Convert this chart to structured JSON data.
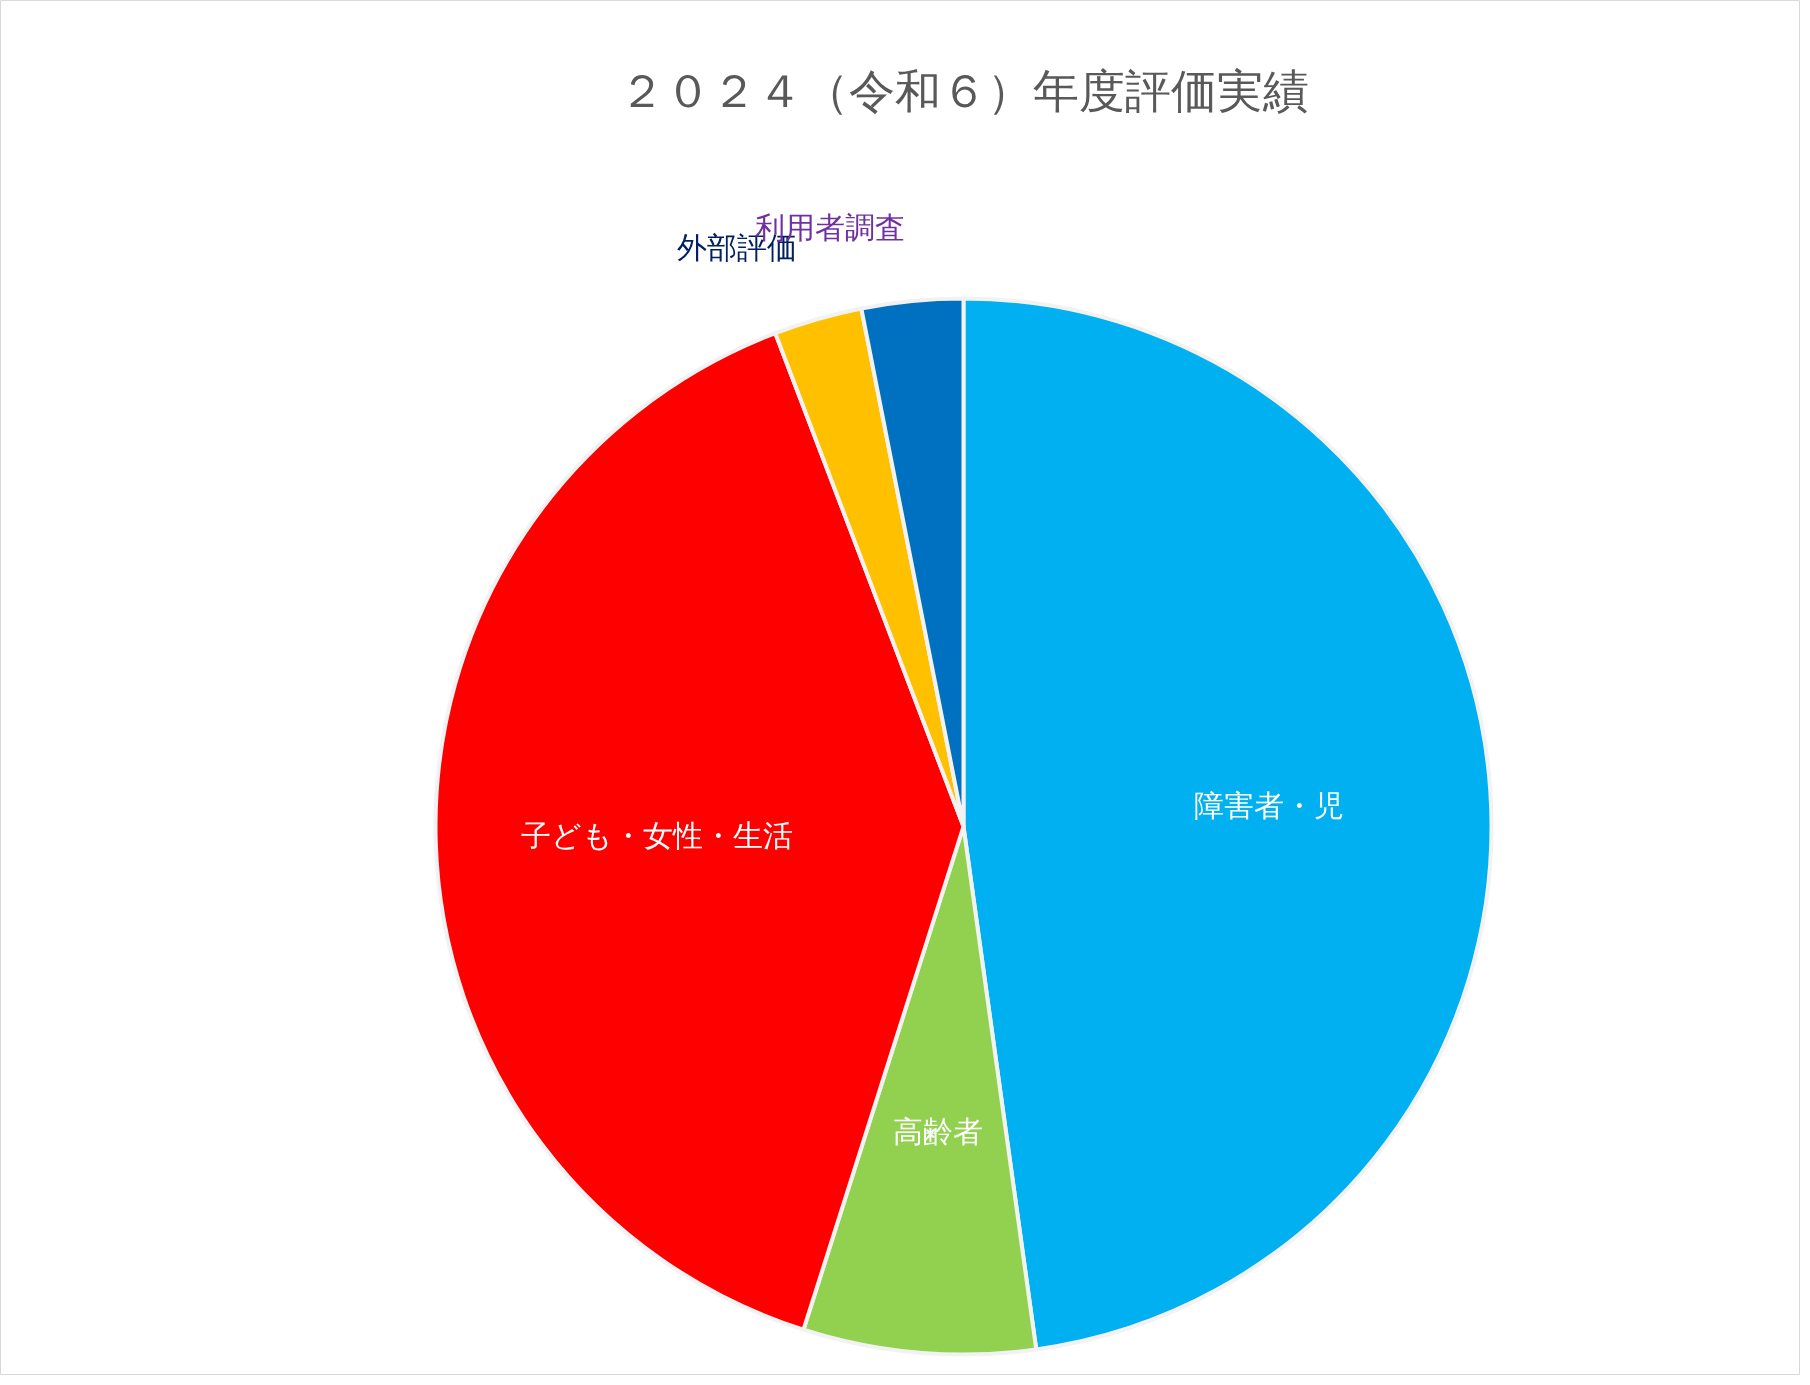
{
  "chart_data": {
    "type": "pie",
    "title": "２０２４（令和６）年度評価実績",
    "categories": [
      "障害者・児",
      "高齢者",
      "子ども・女性・生活",
      "外部評価",
      "利用者調査"
    ],
    "values": [
      47.8,
      7.1,
      39.3,
      2.7,
      3.1
    ],
    "colors": [
      "#00b0f0",
      "#92d050",
      "#ff0000",
      "#ffc000",
      "#0070c0"
    ]
  }
}
